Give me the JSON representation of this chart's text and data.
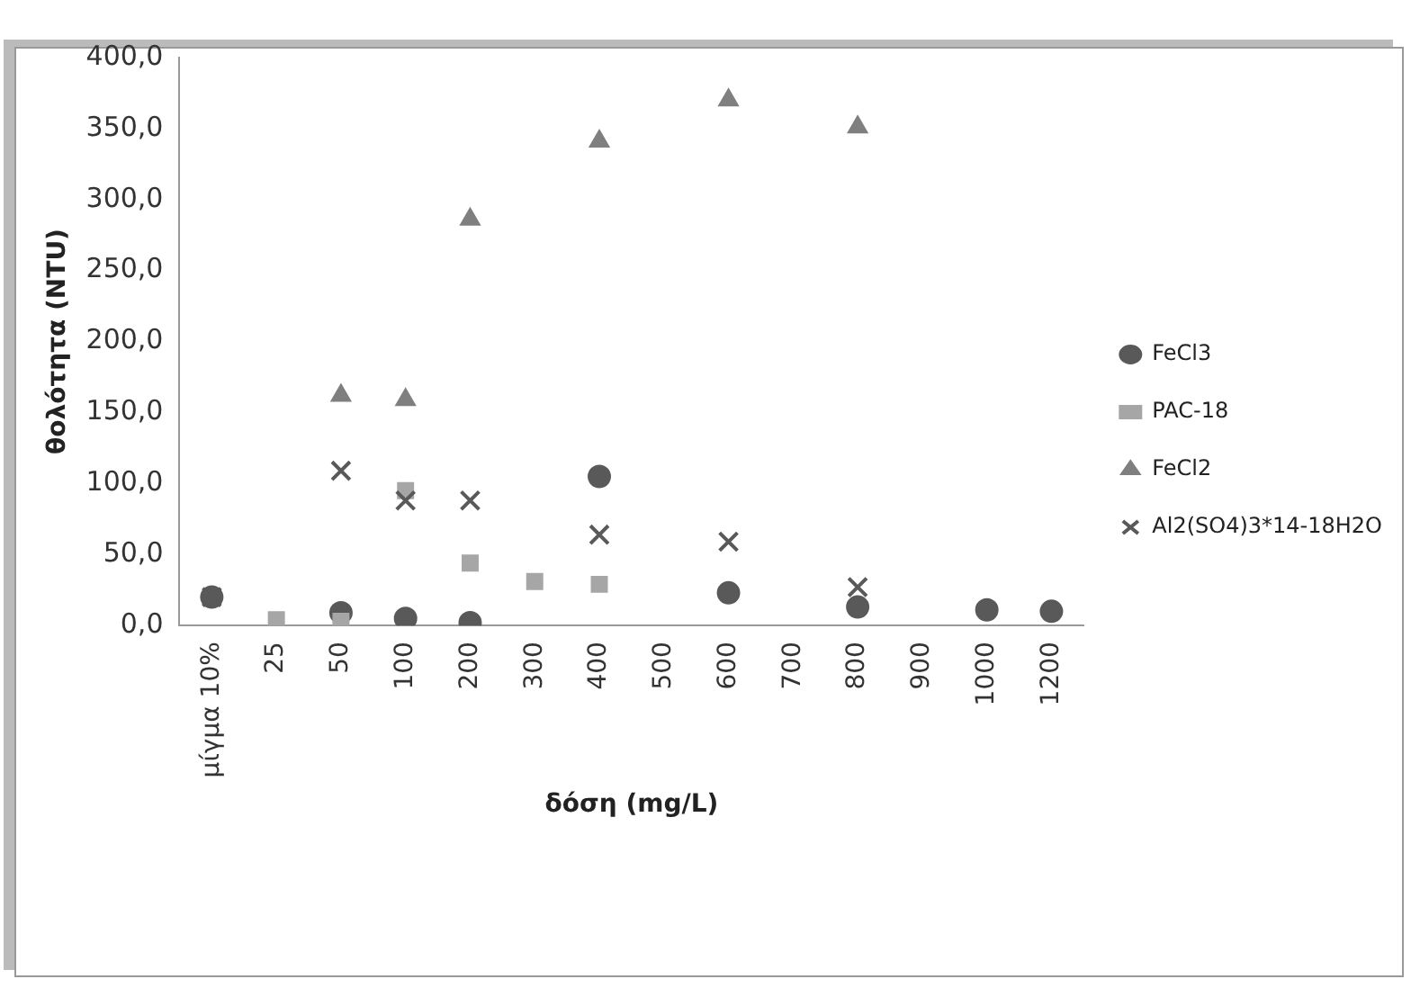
{
  "chart_data": {
    "type": "scatter",
    "xlabel": "δόση (mg/L)",
    "ylabel": "θολότητα (NTU)",
    "categories": [
      "μίγμα 10%",
      "25",
      "50",
      "100",
      "200",
      "300",
      "400",
      "500",
      "600",
      "700",
      "800",
      "900",
      "1000",
      "1200"
    ],
    "series": [
      {
        "name": "FeCl3",
        "color": "#595959",
        "marker": "circle",
        "values": [
          20,
          null,
          9,
          5,
          2,
          null,
          105,
          null,
          23,
          null,
          13,
          null,
          11,
          10
        ]
      },
      {
        "name": "PAC-18",
        "color": "#a6a6a6",
        "marker": "square",
        "values": [
          null,
          4,
          3,
          95,
          44,
          31,
          29,
          null,
          null,
          null,
          null,
          null,
          null,
          null
        ]
      },
      {
        "name": "FeCl2",
        "color": "#7f7f7f",
        "marker": "triangle",
        "values": [
          null,
          null,
          162,
          159,
          286,
          null,
          341,
          null,
          370,
          null,
          351,
          null,
          null,
          null
        ]
      },
      {
        "name": "Al2(SO4)3*14-18H2O",
        "color": "#595959",
        "marker": "cross",
        "values": [
          20,
          null,
          109,
          88,
          88,
          null,
          64,
          null,
          59,
          null,
          27,
          null,
          null,
          null
        ]
      }
    ],
    "ylim": [
      0,
      400
    ],
    "yticks": [
      {
        "value": 0,
        "label": "0,0"
      },
      {
        "value": 50,
        "label": "50,0"
      },
      {
        "value": 100,
        "label": "100,0"
      },
      {
        "value": 150,
        "label": "150,0"
      },
      {
        "value": 200,
        "label": "200,0"
      },
      {
        "value": 250,
        "label": "250,0"
      },
      {
        "value": 300,
        "label": "300,0"
      },
      {
        "value": 350,
        "label": "350,0"
      },
      {
        "value": 400,
        "label": "400,0"
      }
    ],
    "grid": false,
    "legend": "right"
  }
}
